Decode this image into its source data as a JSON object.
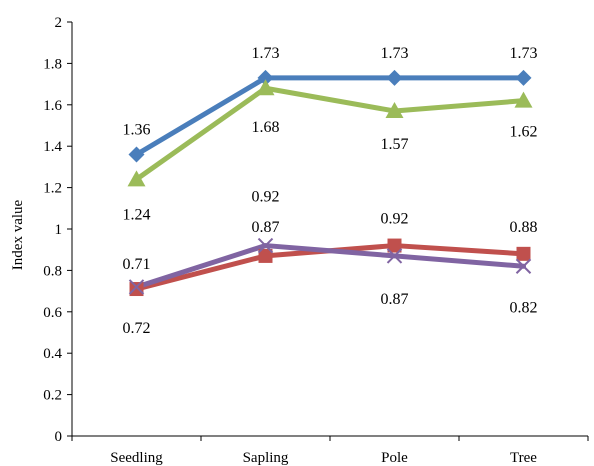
{
  "chart_data": {
    "type": "line",
    "title": "",
    "xlabel": "",
    "ylabel": "Index value",
    "categories": [
      "Seedling",
      "Sapling",
      "Pole",
      "Tree"
    ],
    "ylim": [
      0,
      2
    ],
    "yticks": [
      "0",
      "0.2",
      "0.4",
      "0.6",
      "0.8",
      "1",
      "1.2",
      "1.4",
      "1.6",
      "1.8",
      "2"
    ],
    "grid": false,
    "legend": "none",
    "series": [
      {
        "color": "#4A7EBB",
        "marker": "diamond",
        "values": [
          1.36,
          1.73,
          1.73,
          1.73
        ],
        "labels": [
          "1.36",
          "1.73",
          "1.73",
          "1.73"
        ]
      },
      {
        "color": "#9BBB59",
        "marker": "triangle",
        "values": [
          1.24,
          1.68,
          1.57,
          1.62
        ],
        "labels": [
          "1.24",
          "1.68",
          "1.57",
          "1.62"
        ]
      },
      {
        "color": "#C0504D",
        "marker": "square",
        "values": [
          0.71,
          0.87,
          0.92,
          0.88
        ],
        "labels": [
          "0.71",
          "0.87",
          "0.92",
          "0.88"
        ]
      },
      {
        "color": "#8064A2",
        "marker": "x",
        "values": [
          0.72,
          0.92,
          0.87,
          0.82
        ],
        "labels": [
          "0.72",
          "0.92",
          "0.87",
          "0.82"
        ]
      }
    ]
  }
}
